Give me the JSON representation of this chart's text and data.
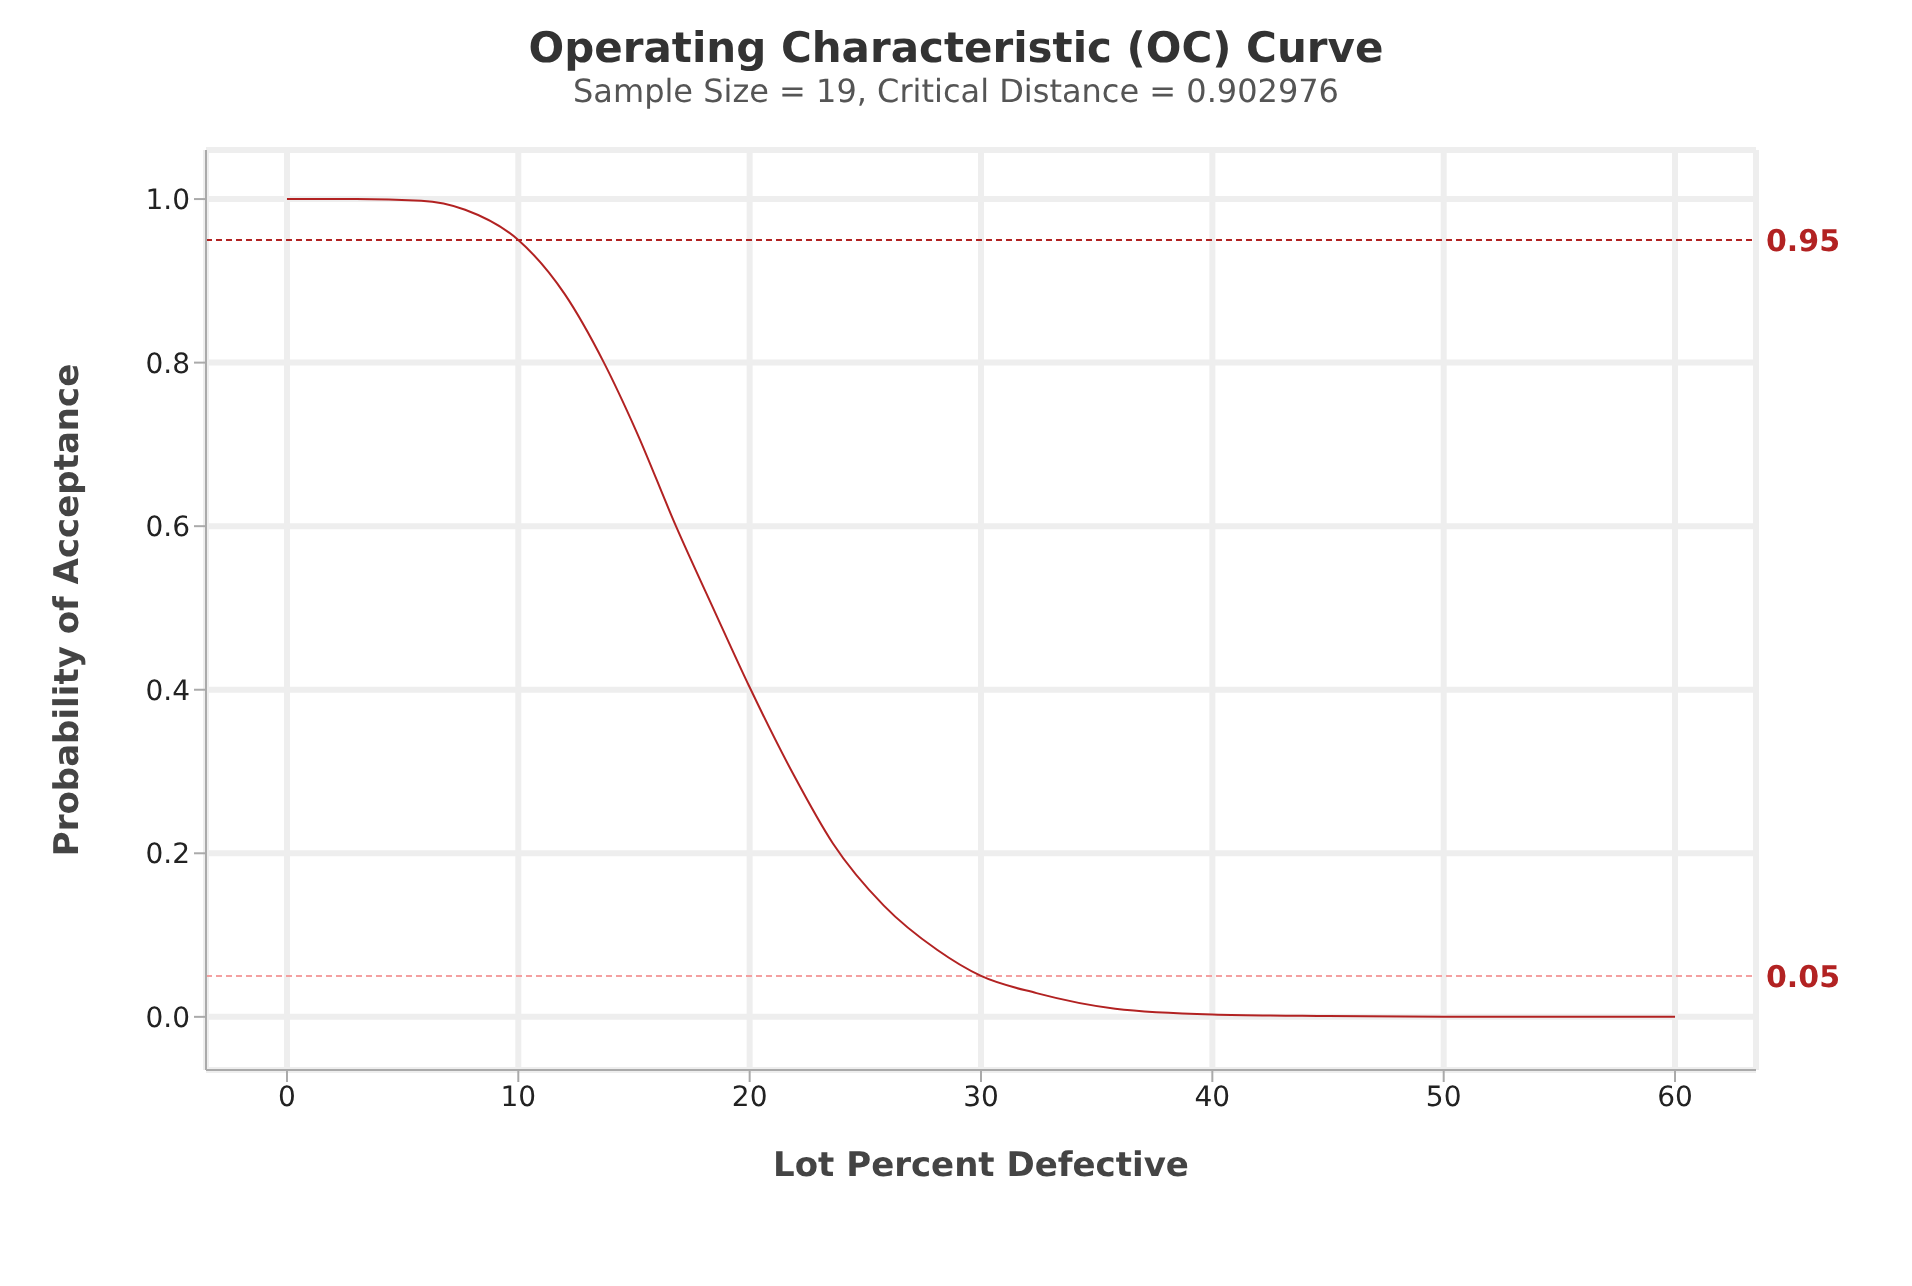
{
  "chart_data": {
    "type": "line",
    "title": "Operating Characteristic (OC) Curve",
    "subtitle": "Sample Size = 19, Critical Distance = 0.902976",
    "xlabel": "Lot Percent Defective",
    "ylabel": "Probability of Acceptance",
    "x": [
      0,
      3,
      5.8,
      7.7,
      10,
      12,
      13.7,
      15.1,
      16.8,
      18.5,
      20,
      21.9,
      23.6,
      25.8,
      28.1,
      30,
      32.4,
      35.8,
      40,
      45,
      50,
      55,
      60
    ],
    "series": [
      {
        "color": "#b22222",
        "values": [
          1.0,
          1.0,
          0.998,
          0.987,
          0.95,
          0.884,
          0.8,
          0.716,
          0.601,
          0.495,
          0.403,
          0.296,
          0.212,
          0.136,
          0.082,
          0.05,
          0.029,
          0.01,
          0.003,
          0.001,
          0,
          0,
          0
        ]
      }
    ],
    "xlim": [
      -3.5,
      63.5
    ],
    "xticks": [
      0,
      10,
      20,
      30,
      40,
      50,
      60
    ],
    "ylim": [
      -0.065,
      1.06
    ],
    "yticks": [
      {
        "value": 0,
        "label": "0.0"
      },
      0.2,
      0.4,
      0.6,
      0.8,
      {
        "value": 1,
        "label": "1.0"
      }
    ],
    "ref_lines": [
      {
        "axis": "y",
        "value": 0.95,
        "label": "0.95",
        "color": "#b22222",
        "line_style": "dashed"
      },
      {
        "axis": "y",
        "value": 0.05,
        "label": "0.05",
        "color": "#f4a0a0",
        "line_style": "dashed"
      }
    ],
    "grid": true,
    "marker": "none",
    "line_style": "solid"
  }
}
